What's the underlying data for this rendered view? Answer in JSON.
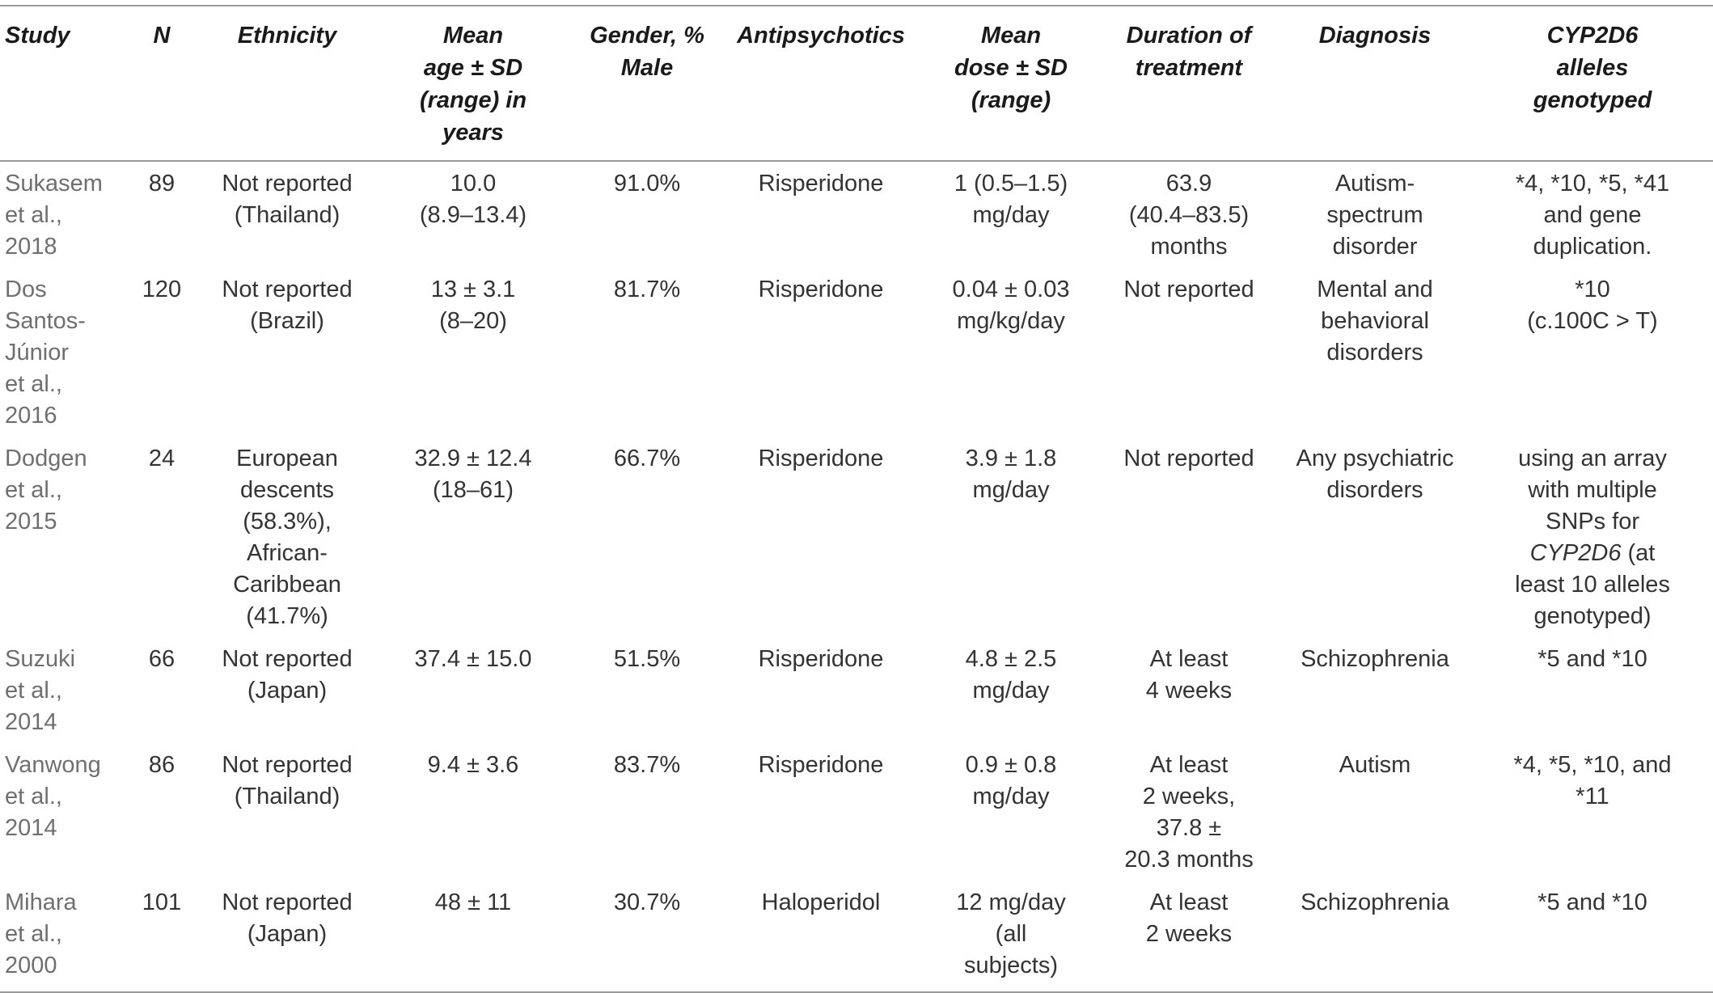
{
  "headers": {
    "study": "Study",
    "n": "N",
    "ethnicity": "Ethnicity",
    "age": [
      "Mean",
      "age ± SD",
      "(range) in",
      "years"
    ],
    "gender": [
      "Gender, %",
      "Male"
    ],
    "antipsychotics": "Antipsychotics",
    "dose": [
      "Mean",
      "dose ± SD",
      "(range)"
    ],
    "duration": [
      "Duration of",
      "treatment"
    ],
    "diagnosis": "Diagnosis",
    "alleles": [
      "CYP2D6",
      "alleles",
      "genotyped"
    ]
  },
  "rows": [
    {
      "study": [
        "Sukasem",
        "et al., 2018"
      ],
      "n": "89",
      "ethnicity": [
        "Not reported",
        "(Thailand)"
      ],
      "age": [
        "10.0",
        "(8.9–13.4)"
      ],
      "gender": "91.0%",
      "drug": "Risperidone",
      "dose": [
        "1 (0.5–1.5)",
        "mg/day"
      ],
      "duration": [
        "63.9",
        "(40.4–83.5)",
        "months"
      ],
      "diagnosis": [
        "Autism-",
        "spectrum",
        "disorder"
      ],
      "alleles": [
        "*4, *10, *5, *41",
        "and gene",
        "duplication."
      ]
    },
    {
      "study": [
        "Dos",
        "Santos-",
        "Júnior",
        "et al., 2016"
      ],
      "n": "120",
      "ethnicity": [
        "Not reported",
        "(Brazil)"
      ],
      "age": [
        "13 ± 3.1",
        "(8–20)"
      ],
      "gender": "81.7%",
      "drug": "Risperidone",
      "dose": [
        "0.04 ± 0.03",
        "mg/kg/day"
      ],
      "duration": [
        "Not reported"
      ],
      "diagnosis": [
        "Mental and",
        "behavioral",
        "disorders"
      ],
      "alleles": [
        "*10",
        "(c.100C > T)"
      ]
    },
    {
      "study": [
        "Dodgen",
        "et al., 2015"
      ],
      "n": "24",
      "ethnicity": [
        "European",
        "descents",
        "(58.3%), African-",
        "Caribbean",
        "(41.7%)"
      ],
      "age": [
        "32.9 ± 12.4",
        "(18–61)"
      ],
      "gender": "66.7%",
      "drug": "Risperidone",
      "dose": [
        "3.9 ± 1.8",
        "mg/day"
      ],
      "duration": [
        "Not reported"
      ],
      "diagnosis": [
        "Any psychiatric",
        "disorders"
      ],
      "alleles_special": {
        "l1": "using an array",
        "l2": "with multiple",
        "l3": "SNPs for",
        "gene": "CYP2D6",
        "l4_rest": " (at",
        "l5": "least 10 alleles",
        "l6": "genotyped)"
      }
    },
    {
      "study": [
        "Suzuki",
        "et al., 2014"
      ],
      "n": "66",
      "ethnicity": [
        "Not reported",
        "(Japan)"
      ],
      "age": [
        "37.4 ± 15.0"
      ],
      "gender": "51.5%",
      "drug": "Risperidone",
      "dose": [
        "4.8 ± 2.5",
        "mg/day"
      ],
      "duration": [
        "At least",
        "4 weeks"
      ],
      "diagnosis": [
        "Schizophrenia"
      ],
      "alleles": [
        "*5 and *10"
      ]
    },
    {
      "study": [
        "Vanwong",
        "et al., 2014"
      ],
      "n": "86",
      "ethnicity": [
        "Not reported",
        "(Thailand)"
      ],
      "age": [
        "9.4 ± 3.6"
      ],
      "gender": "83.7%",
      "drug": "Risperidone",
      "dose": [
        "0.9 ± 0.8",
        "mg/day"
      ],
      "duration": [
        "At least",
        "2 weeks,",
        "37.8 ±",
        "20.3 months"
      ],
      "diagnosis": [
        "Autism"
      ],
      "alleles": [
        "*4, *5, *10, and",
        "*11"
      ]
    },
    {
      "study": [
        "Mihara",
        "et al., 2000"
      ],
      "n": "101",
      "ethnicity": [
        "Not reported",
        "(Japan)"
      ],
      "age": [
        "48 ± 11"
      ],
      "gender": "30.7%",
      "drug": "Haloperidol",
      "dose": [
        "12 mg/day",
        "(all",
        "subjects)"
      ],
      "duration": [
        "At least",
        "2 weeks"
      ],
      "diagnosis": [
        "Schizophrenia"
      ],
      "alleles": [
        "*5 and *10"
      ]
    }
  ]
}
